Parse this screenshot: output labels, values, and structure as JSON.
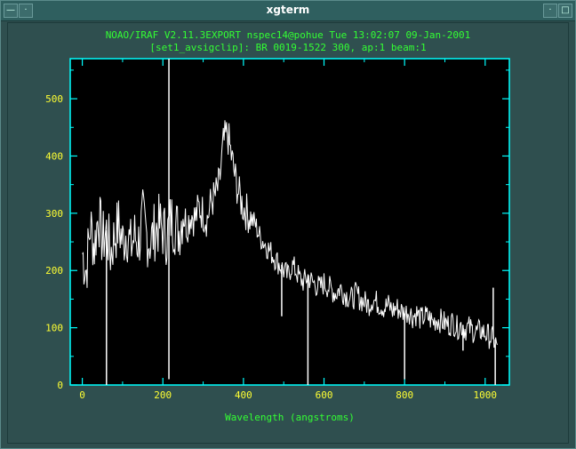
{
  "window": {
    "title": "xgterm"
  },
  "plot": {
    "header_line1": "NOAO/IRAF V2.11.3EXPORT nspec14@pohue Tue 13:02:07 09-Jan-2001",
    "header_line2": "[set1_avsigclip]:  BR 0019-1522 300, ap:1 beam:1",
    "xlabel": "Wavelength (angstroms)",
    "colors": {
      "axis": "#00ffff",
      "header": "#33ff33",
      "ticklabel": "#ffff33",
      "trace": "#ffffff",
      "background": "#000000"
    }
  },
  "chart_data": {
    "type": "line",
    "title": "NOAO/IRAF V2.11.3EXPORT nspec14@pohue Tue 13:02:07 09-Jan-2001",
    "subtitle": "[set1_avsigclip]:  BR 0019-1522 300, ap:1 beam:1",
    "xlabel": "Wavelength (angstroms)",
    "ylabel": "",
    "xlim": [
      -30,
      1060
    ],
    "ylim": [
      0,
      570
    ],
    "xticks": [
      0,
      200,
      400,
      600,
      800,
      1000
    ],
    "yticks": [
      0,
      100,
      200,
      300,
      400,
      500
    ],
    "grid": false,
    "series": [
      {
        "x": [
          0,
          10,
          20,
          30,
          40,
          50,
          60,
          70,
          80,
          90,
          100,
          110,
          120,
          130,
          140,
          150,
          160,
          170,
          180,
          190,
          200,
          210,
          220,
          230,
          240,
          250,
          260,
          270,
          280,
          290,
          300,
          310,
          320,
          330,
          340,
          350,
          360,
          370,
          380,
          390,
          400,
          410,
          420,
          430,
          440,
          450,
          460,
          470,
          480,
          490,
          500,
          510,
          520,
          530,
          540,
          550,
          560,
          570,
          580,
          590,
          600,
          610,
          620,
          630,
          640,
          650,
          660,
          670,
          680,
          690,
          700,
          710,
          720,
          730,
          740,
          750,
          760,
          770,
          780,
          790,
          800,
          810,
          820,
          830,
          840,
          850,
          860,
          870,
          880,
          890,
          900,
          910,
          920,
          930,
          940,
          950,
          960,
          970,
          980,
          990,
          1000,
          1010,
          1020,
          1030
        ],
        "y": [
          230,
          200,
          280,
          240,
          300,
          250,
          270,
          230,
          260,
          280,
          250,
          270,
          240,
          260,
          250,
          290,
          260,
          250,
          270,
          280,
          270,
          260,
          290,
          280,
          270,
          300,
          280,
          300,
          290,
          310,
          300,
          290,
          320,
          330,
          350,
          420,
          440,
          400,
          360,
          330,
          310,
          300,
          290,
          280,
          260,
          250,
          240,
          230,
          220,
          210,
          200,
          190,
          210,
          200,
          185,
          180,
          190,
          180,
          175,
          170,
          178,
          172,
          165,
          160,
          170,
          160,
          155,
          150,
          160,
          150,
          145,
          140,
          150,
          145,
          140,
          135,
          140,
          130,
          135,
          130,
          125,
          130,
          120,
          125,
          115,
          120,
          118,
          110,
          115,
          112,
          108,
          105,
          110,
          100,
          105,
          98,
          100,
          95,
          92,
          95,
          90,
          85,
          80,
          70
        ]
      }
    ],
    "spikes": [
      {
        "x": 60,
        "y": 0
      },
      {
        "x": 215,
        "y": 570
      },
      {
        "x": 215,
        "y": 10
      },
      {
        "x": 355,
        "y": 420
      },
      {
        "x": 495,
        "y": 120
      },
      {
        "x": 560,
        "y": 0
      },
      {
        "x": 800,
        "y": 10
      },
      {
        "x": 945,
        "y": 60
      },
      {
        "x": 1020,
        "y": 170
      },
      {
        "x": 1025,
        "y": 0
      }
    ]
  }
}
